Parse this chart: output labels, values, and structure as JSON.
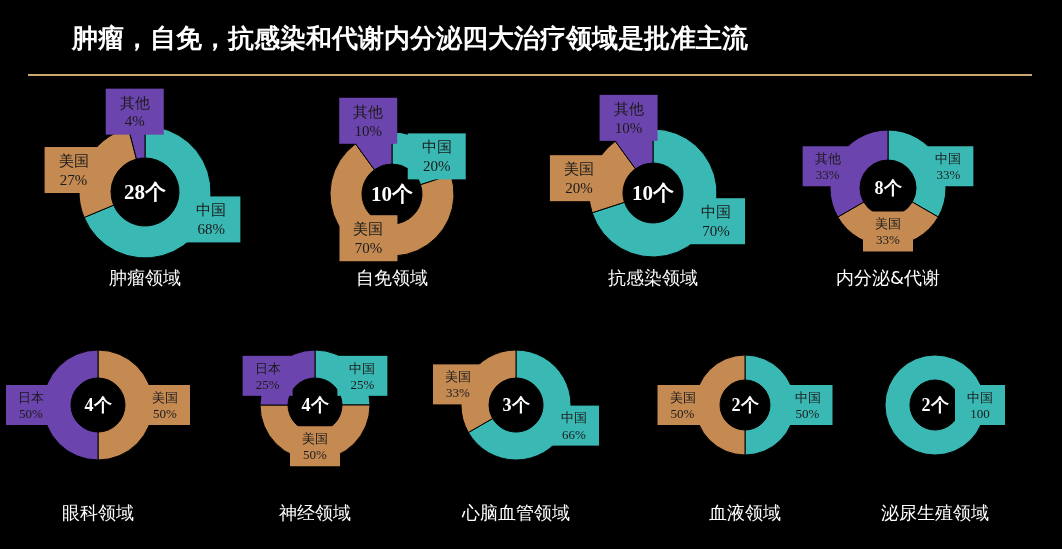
{
  "chart_data": [
    {
      "type": "donut",
      "title": "肿瘤，自免，抗感染和代谢内分泌四大治疗领域是批准主流",
      "xlabel": "肿瘤领域",
      "annotations": [
        "28个"
      ],
      "categories": [
        "中国",
        "美国",
        "其他"
      ],
      "values": [
        68,
        27,
        4
      ],
      "value_labels": [
        "68%",
        "27%",
        "4%"
      ],
      "colors": [
        "#3ab8b3",
        "#c48a52",
        "#6c44ad"
      ]
    },
    {
      "type": "donut",
      "xlabel": "自免领域",
      "annotations": [
        "10个"
      ],
      "categories": [
        "中国",
        "美国",
        "其他"
      ],
      "values": [
        20,
        70,
        10
      ],
      "value_labels": [
        "20%",
        "70%",
        "10%"
      ],
      "colors": [
        "#3ab8b3",
        "#c48a52",
        "#6c44ad"
      ]
    },
    {
      "type": "donut",
      "xlabel": "抗感染领域",
      "annotations": [
        "10个"
      ],
      "categories": [
        "中国",
        "美国",
        "其他"
      ],
      "values": [
        70,
        20,
        10
      ],
      "value_labels": [
        "70%",
        "20%",
        "10%"
      ],
      "colors": [
        "#3ab8b3",
        "#c48a52",
        "#6c44ad"
      ]
    },
    {
      "type": "donut",
      "xlabel": "内分泌&代谢",
      "annotations": [
        "8个"
      ],
      "categories": [
        "中国",
        "美国",
        "其他"
      ],
      "values": [
        33,
        33,
        33
      ],
      "value_labels": [
        "33%",
        "33%",
        "33%"
      ],
      "colors": [
        "#3ab8b3",
        "#c48a52",
        "#6c44ad"
      ]
    },
    {
      "type": "donut",
      "xlabel": "眼科领域",
      "annotations": [
        "4个"
      ],
      "categories": [
        "美国",
        "日本"
      ],
      "values": [
        50,
        50
      ],
      "value_labels": [
        "50%",
        "50%"
      ],
      "colors": [
        "#c48a52",
        "#6c44ad"
      ]
    },
    {
      "type": "donut",
      "xlabel": "神经领域",
      "annotations": [
        "4个"
      ],
      "categories": [
        "中国",
        "美国",
        "日本"
      ],
      "values": [
        25,
        50,
        25
      ],
      "value_labels": [
        "25%",
        "50%",
        "25%"
      ],
      "colors": [
        "#3ab8b3",
        "#c48a52",
        "#6c44ad"
      ]
    },
    {
      "type": "donut",
      "xlabel": "心脑血管领域",
      "annotations": [
        "3个"
      ],
      "categories": [
        "中国",
        "美国"
      ],
      "values": [
        66,
        33
      ],
      "value_labels": [
        "66%",
        "33%"
      ],
      "colors": [
        "#3ab8b3",
        "#c48a52"
      ]
    },
    {
      "type": "donut",
      "xlabel": "血液领域",
      "annotations": [
        "2个"
      ],
      "categories": [
        "中国",
        "美国"
      ],
      "values": [
        50,
        50
      ],
      "value_labels": [
        "50%",
        "50%"
      ],
      "colors": [
        "#3ab8b3",
        "#c48a52"
      ]
    },
    {
      "type": "donut",
      "xlabel": "泌尿生殖领域",
      "annotations": [
        "2个"
      ],
      "categories": [
        "中国"
      ],
      "values": [
        100
      ],
      "value_labels": [
        "100"
      ],
      "colors": [
        "#3ab8b3"
      ]
    }
  ]
}
